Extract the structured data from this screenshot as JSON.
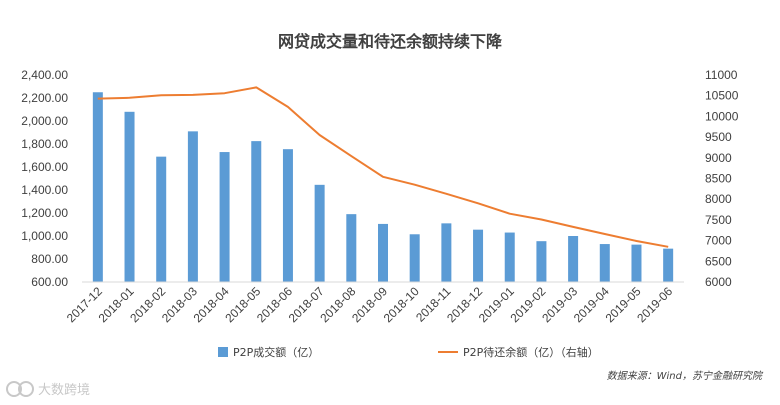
{
  "chart_data": {
    "type": "bar",
    "title": "网贷成交量和待还余额持续下降",
    "categories": [
      "2017-12",
      "2018-01",
      "2018-02",
      "2018-03",
      "2018-04",
      "2018-05",
      "2018-06",
      "2018-07",
      "2018-08",
      "2018-09",
      "2018-10",
      "2018-11",
      "2018-12",
      "2019-01",
      "2019-02",
      "2019-03",
      "2019-04",
      "2019-05",
      "2019-06"
    ],
    "series": [
      {
        "name": "P2P成交额（亿）",
        "type": "bar",
        "axis": "left",
        "color": "#5B9BD5",
        "values": [
          2250,
          2080,
          1690,
          1910,
          1730,
          1825,
          1755,
          1445,
          1190,
          1105,
          1015,
          1110,
          1055,
          1030,
          955,
          1000,
          930,
          925,
          890
        ]
      },
      {
        "name": "P2P待还余额（亿）（右轴）",
        "type": "line",
        "axis": "right",
        "color": "#ED7D31",
        "values": [
          10430,
          10450,
          10510,
          10520,
          10560,
          10700,
          10230,
          9550,
          9040,
          8540,
          8350,
          8130,
          7900,
          7650,
          7510,
          7330,
          7160,
          6990,
          6850
        ]
      }
    ],
    "y_left": {
      "min": 600,
      "max": 2400,
      "step": 200,
      "tick_labels": [
        "600.00",
        "800.00",
        "1,000.00",
        "1,200.00",
        "1,400.00",
        "1,600.00",
        "1,800.00",
        "2,000.00",
        "2,200.00",
        "2,400.00"
      ]
    },
    "y_right": {
      "min": 6000,
      "max": 11000,
      "step": 500,
      "tick_labels": [
        "6000",
        "6500",
        "7000",
        "7500",
        "8000",
        "8500",
        "9000",
        "9500",
        "10000",
        "10500",
        "11000"
      ]
    },
    "grid": false,
    "legend_position": "bottom",
    "source": "数据来源：Wind，苏宁金融研究院",
    "watermark": "大数跨境"
  }
}
